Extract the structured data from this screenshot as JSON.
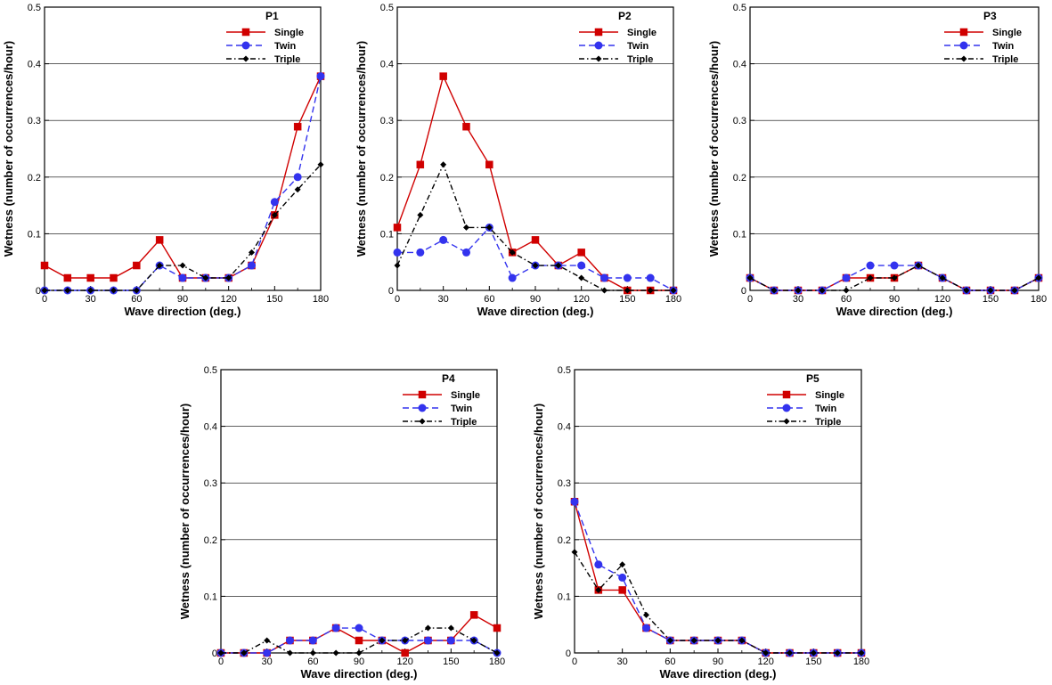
{
  "chart_data": [
    {
      "type": "line",
      "title": "P1",
      "xlabel": "Wave direction (deg.)",
      "ylabel": "Wetness (number of occurrences/hour)",
      "xlim": [
        0,
        180
      ],
      "ylim": [
        0,
        0.5
      ],
      "xticks": [
        "0",
        "30",
        "60",
        "90",
        "120",
        "150",
        "180"
      ],
      "yticks": [
        "0",
        "0.1",
        "0.2",
        "0.3",
        "0.4",
        "0.5"
      ],
      "x": [
        0,
        15,
        30,
        45,
        60,
        75,
        90,
        105,
        120,
        135,
        150,
        165,
        180
      ],
      "legend_position": "top-right",
      "grid": "horizontal",
      "series": [
        {
          "name": "Single",
          "color": "#d00000",
          "marker": "square",
          "dash": "solid",
          "values": [
            0.044,
            0.022,
            0.022,
            0.022,
            0.044,
            0.089,
            0.022,
            0.022,
            0.022,
            0.044,
            0.133,
            0.289,
            0.378
          ]
        },
        {
          "name": "Twin",
          "color": "#3333ee",
          "marker": "circle",
          "dash": "dashed",
          "values": [
            0,
            0,
            0,
            0,
            0,
            0.044,
            0.022,
            0.022,
            0.022,
            0.044,
            0.156,
            0.2,
            0.378
          ]
        },
        {
          "name": "Triple",
          "color": "#000000",
          "marker": "diamond",
          "dash": "dashdot",
          "values": [
            0,
            0,
            0,
            0,
            0,
            0.044,
            0.044,
            0.022,
            0.022,
            0.067,
            0.133,
            0.178,
            0.222
          ]
        }
      ]
    },
    {
      "type": "line",
      "title": "P2",
      "xlabel": "Wave direction (deg.)",
      "ylabel": "Wetness (number of occurrences/hour)",
      "xlim": [
        0,
        180
      ],
      "ylim": [
        0,
        0.5
      ],
      "xticks": [
        "0",
        "30",
        "60",
        "90",
        "120",
        "150",
        "180"
      ],
      "yticks": [
        "0",
        "0.1",
        "0.2",
        "0.3",
        "0.4",
        "0.5"
      ],
      "x": [
        0,
        15,
        30,
        45,
        60,
        75,
        90,
        105,
        120,
        135,
        150,
        165,
        180
      ],
      "legend_position": "top-right",
      "grid": "horizontal",
      "series": [
        {
          "name": "Single",
          "color": "#d00000",
          "marker": "square",
          "dash": "solid",
          "values": [
            0.111,
            0.222,
            0.378,
            0.289,
            0.222,
            0.067,
            0.089,
            0.044,
            0.067,
            0.022,
            0,
            0,
            0
          ]
        },
        {
          "name": "Twin",
          "color": "#3333ee",
          "marker": "circle",
          "dash": "dashed",
          "values": [
            0.067,
            0.067,
            0.089,
            0.067,
            0.111,
            0.022,
            0.044,
            0.044,
            0.044,
            0.022,
            0.022,
            0.022,
            0
          ]
        },
        {
          "name": "Triple",
          "color": "#000000",
          "marker": "diamond",
          "dash": "dashdot",
          "values": [
            0.044,
            0.133,
            0.222,
            0.111,
            0.111,
            0.067,
            0.044,
            0.044,
            0.022,
            0,
            0,
            0,
            0
          ]
        }
      ]
    },
    {
      "type": "line",
      "title": "P3",
      "xlabel": "Wave direction (deg.)",
      "ylabel": "Wetness (number of occurrences/hour)",
      "xlim": [
        0,
        180
      ],
      "ylim": [
        0,
        0.5
      ],
      "xticks": [
        "0",
        "30",
        "60",
        "90",
        "120",
        "150",
        "180"
      ],
      "yticks": [
        "0",
        "0.1",
        "0.2",
        "0.3",
        "0.4",
        "0.5"
      ],
      "x": [
        0,
        15,
        30,
        45,
        60,
        75,
        90,
        105,
        120,
        135,
        150,
        165,
        180
      ],
      "legend_position": "top-right",
      "grid": "horizontal",
      "series": [
        {
          "name": "Single",
          "color": "#d00000",
          "marker": "square",
          "dash": "solid",
          "values": [
            0.022,
            0,
            0,
            0,
            0.022,
            0.022,
            0.022,
            0.044,
            0.022,
            0,
            0,
            0,
            0.022
          ]
        },
        {
          "name": "Twin",
          "color": "#3333ee",
          "marker": "circle",
          "dash": "dashed",
          "values": [
            0.022,
            0,
            0,
            0,
            0.022,
            0.044,
            0.044,
            0.044,
            0.022,
            0,
            0,
            0,
            0.022
          ]
        },
        {
          "name": "Triple",
          "color": "#000000",
          "marker": "diamond",
          "dash": "dashdot",
          "values": [
            0.022,
            0,
            0,
            0,
            0,
            0.022,
            0.022,
            0.044,
            0.022,
            0,
            0,
            0,
            0.022
          ]
        }
      ]
    },
    {
      "type": "line",
      "title": "P4",
      "xlabel": "Wave direction (deg.)",
      "ylabel": "Wetness (number of occurrences/hour)",
      "xlim": [
        0,
        180
      ],
      "ylim": [
        0,
        0.5
      ],
      "xticks": [
        "0",
        "30",
        "60",
        "90",
        "120",
        "150",
        "180"
      ],
      "yticks": [
        "0",
        "0.1",
        "0.2",
        "0.3",
        "0.4",
        "0.5"
      ],
      "x": [
        0,
        15,
        30,
        45,
        60,
        75,
        90,
        105,
        120,
        135,
        150,
        165,
        180
      ],
      "legend_position": "top-right",
      "grid": "horizontal",
      "series": [
        {
          "name": "Single",
          "color": "#d00000",
          "marker": "square",
          "dash": "solid",
          "values": [
            0,
            0,
            0,
            0.022,
            0.022,
            0.044,
            0.022,
            0.022,
            0,
            0.022,
            0.022,
            0.067,
            0.044
          ]
        },
        {
          "name": "Twin",
          "color": "#3333ee",
          "marker": "circle",
          "dash": "dashed",
          "values": [
            0,
            0,
            0,
            0.022,
            0.022,
            0.044,
            0.044,
            0.022,
            0.022,
            0.022,
            0.022,
            0.022,
            0
          ]
        },
        {
          "name": "Triple",
          "color": "#000000",
          "marker": "diamond",
          "dash": "dashdot",
          "values": [
            0,
            0,
            0.022,
            0,
            0,
            0,
            0,
            0.022,
            0.022,
            0.044,
            0.044,
            0.022,
            0
          ]
        }
      ]
    },
    {
      "type": "line",
      "title": "P5",
      "xlabel": "Wave direction (deg.)",
      "ylabel": "Wetness (number of occurrences/hour)",
      "xlim": [
        0,
        180
      ],
      "ylim": [
        0,
        0.5
      ],
      "xticks": [
        "0",
        "30",
        "60",
        "90",
        "120",
        "150",
        "180"
      ],
      "yticks": [
        "0",
        "0.1",
        "0.2",
        "0.3",
        "0.4",
        "0.5"
      ],
      "x": [
        0,
        15,
        30,
        45,
        60,
        75,
        90,
        105,
        120,
        135,
        150,
        165,
        180
      ],
      "legend_position": "top-right",
      "grid": "horizontal",
      "series": [
        {
          "name": "Single",
          "color": "#d00000",
          "marker": "square",
          "dash": "solid",
          "values": [
            0.267,
            0.111,
            0.111,
            0.044,
            0.022,
            0.022,
            0.022,
            0.022,
            0,
            0,
            0,
            0,
            0
          ]
        },
        {
          "name": "Twin",
          "color": "#3333ee",
          "marker": "circle",
          "dash": "dashed",
          "values": [
            0.267,
            0.156,
            0.133,
            0.044,
            0.022,
            0.022,
            0.022,
            0.022,
            0,
            0,
            0,
            0,
            0
          ]
        },
        {
          "name": "Triple",
          "color": "#000000",
          "marker": "diamond",
          "dash": "dashdot",
          "values": [
            0.178,
            0.111,
            0.156,
            0.067,
            0.022,
            0.022,
            0.022,
            0.022,
            0,
            0,
            0,
            0,
            0
          ]
        }
      ]
    }
  ]
}
